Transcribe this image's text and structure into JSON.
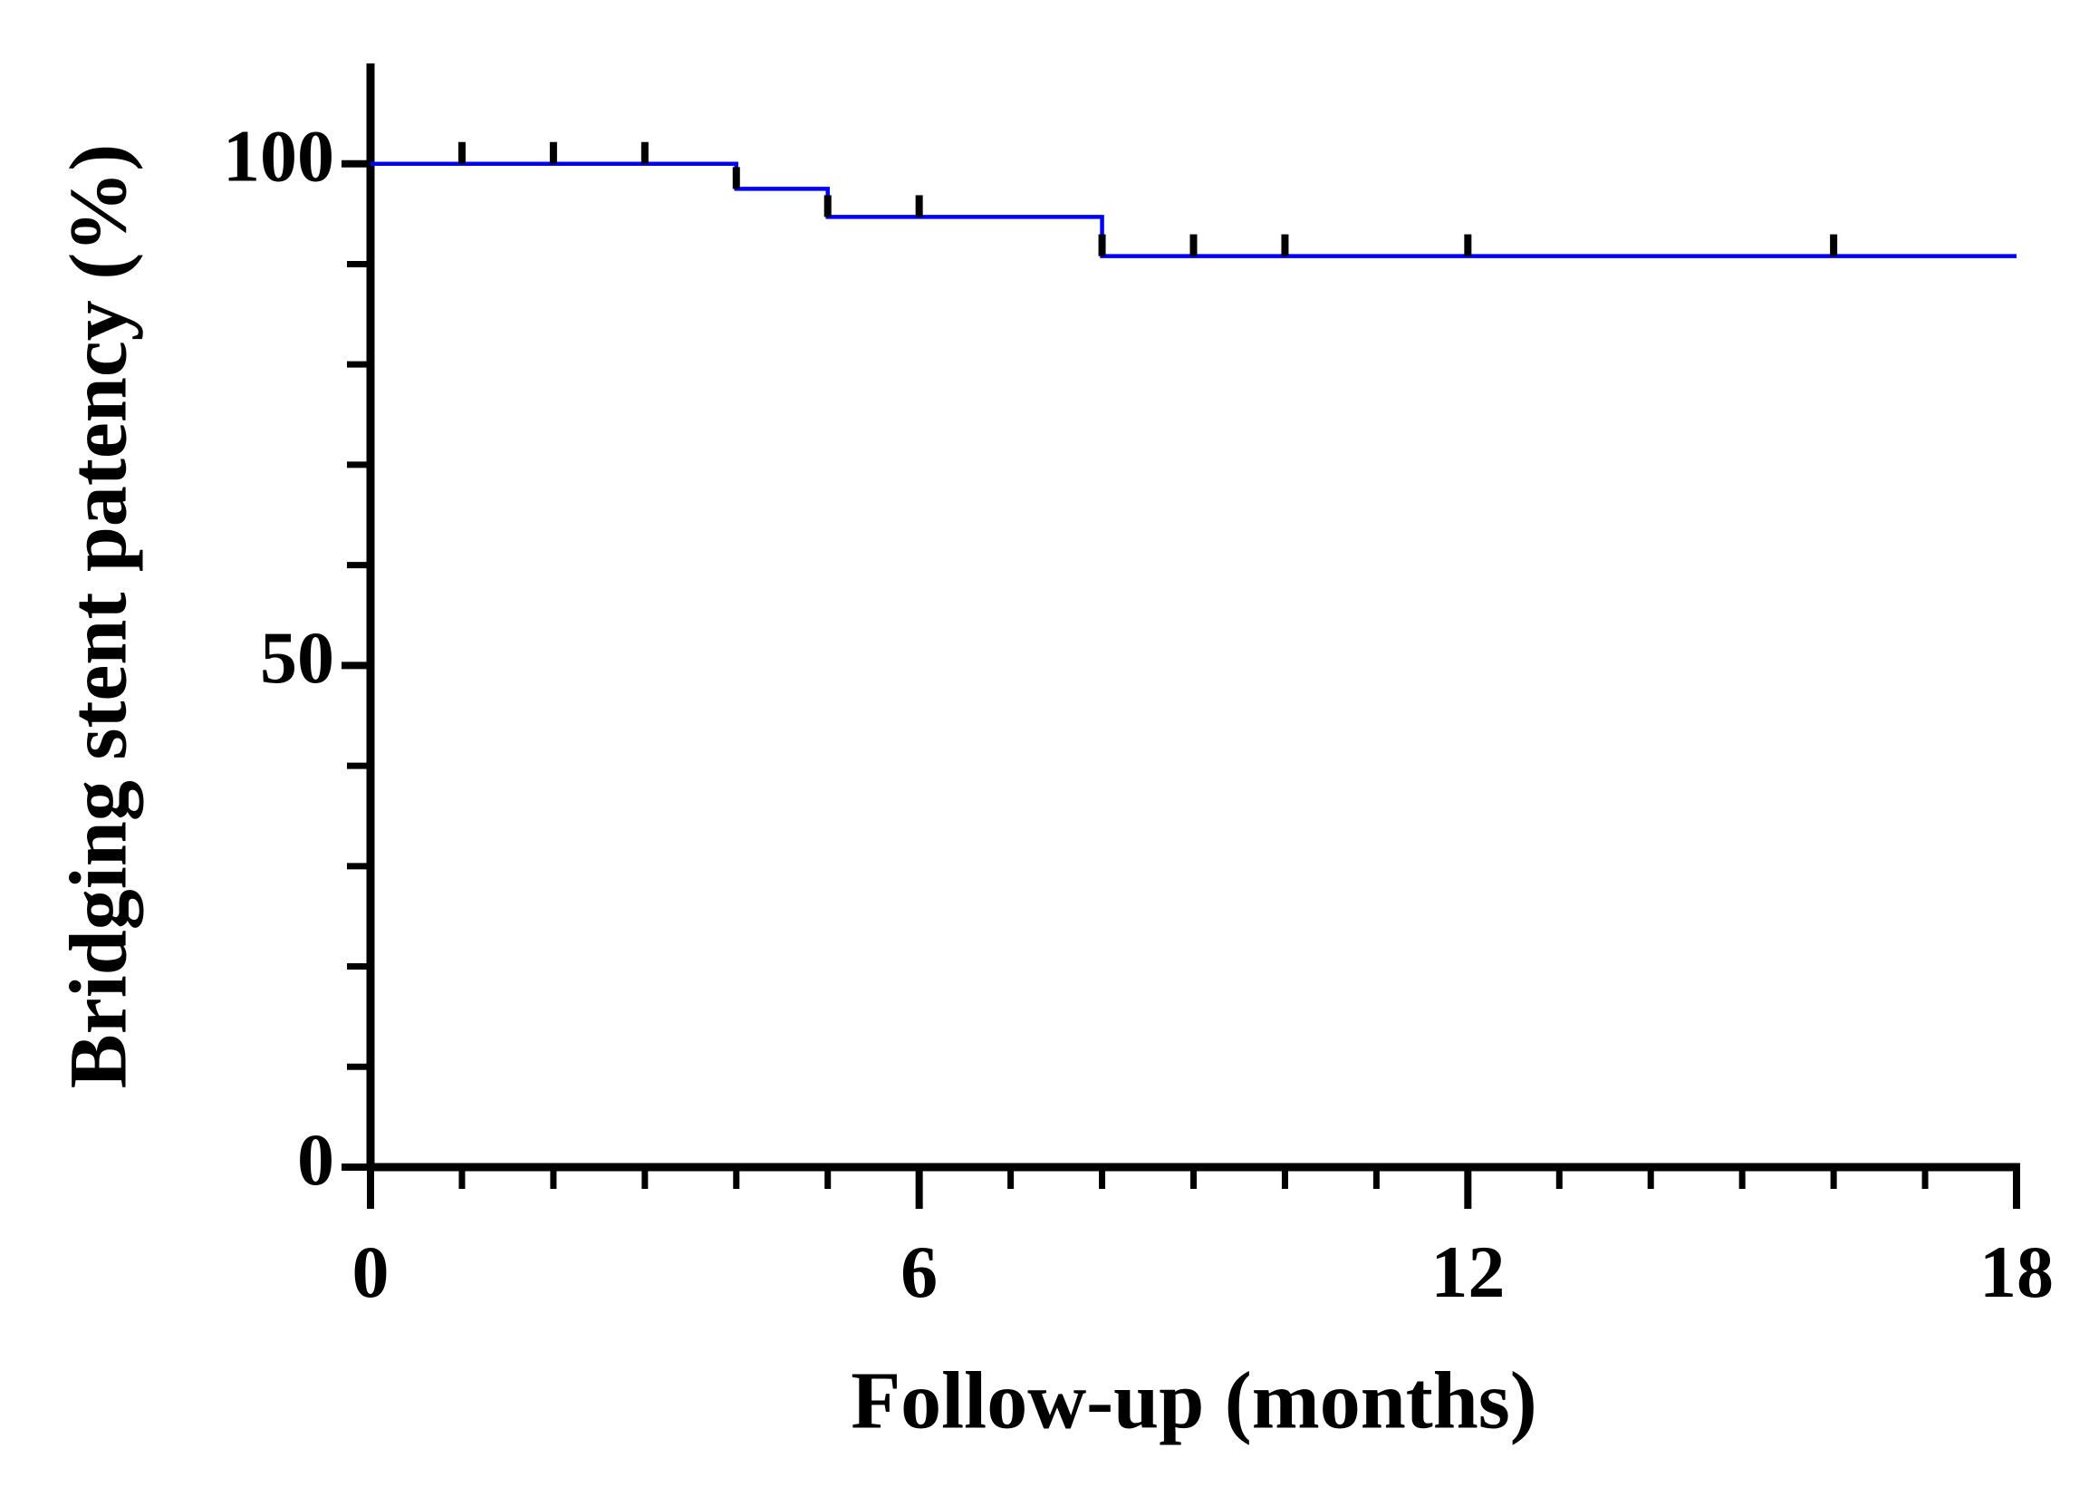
{
  "chart_data": {
    "type": "step",
    "x_label": "Follow-up (months)",
    "y_label": "Bridging stent patency (%)",
    "xlim": [
      0,
      18
    ],
    "ylim": [
      0,
      110
    ],
    "xticks": [
      0,
      6,
      12,
      18
    ],
    "xticks_minor": [
      1,
      2,
      3,
      4,
      5,
      7,
      8,
      9,
      10,
      11,
      13,
      14,
      15,
      16,
      17
    ],
    "yticks": [
      0,
      50,
      100
    ],
    "yticks_minor": [
      10,
      20,
      30,
      40,
      60,
      70,
      80,
      90
    ],
    "series": [
      {
        "color": "#0000ff",
        "x": [
          0,
          4,
          5,
          8,
          18
        ],
        "values": [
          100,
          97.5,
          94.7,
          90.8,
          90.8
        ],
        "censored_x": [
          1,
          2,
          3,
          4,
          5,
          6,
          8,
          9,
          10,
          12,
          16
        ],
        "censored_values": [
          100,
          100,
          100,
          97.5,
          94.7,
          94.7,
          90.8,
          90.8,
          90.8,
          90.8,
          90.8
        ]
      }
    ]
  }
}
